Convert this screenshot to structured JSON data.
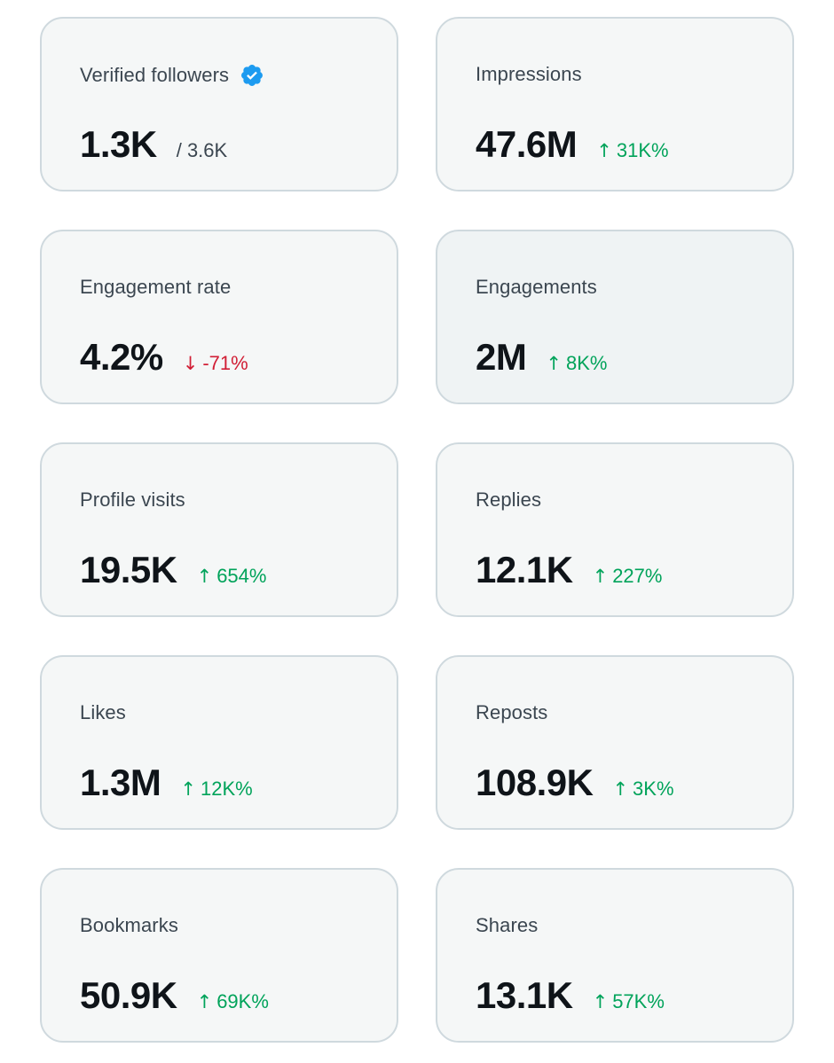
{
  "colors": {
    "card_bg": "#f5f7f7",
    "card_border": "#cfd9de",
    "value": "#0f1419",
    "label": "#3b4650",
    "up": "#00a35a",
    "down": "#d11e35",
    "verified": "#1d9bf0"
  },
  "cards": {
    "verified_followers": {
      "label": "Verified followers",
      "value": "1.3K",
      "sub": "/ 3.6K",
      "badge_icon": "verified-badge-icon"
    },
    "impressions": {
      "label": "Impressions",
      "value": "47.6M",
      "arrow": "↑",
      "delta": "31K%",
      "direction": "up"
    },
    "engagement_rate": {
      "label": "Engagement rate",
      "value": "4.2%",
      "arrow": "↓",
      "delta": "-71%",
      "direction": "down"
    },
    "engagements": {
      "label": "Engagements",
      "value": "2M",
      "arrow": "↑",
      "delta": "8K%",
      "direction": "up"
    },
    "profile_visits": {
      "label": "Profile visits",
      "value": "19.5K",
      "arrow": "↑",
      "delta": "654%",
      "direction": "up"
    },
    "replies": {
      "label": "Replies",
      "value": "12.1K",
      "arrow": "↑",
      "delta": "227%",
      "direction": "up"
    },
    "likes": {
      "label": "Likes",
      "value": "1.3M",
      "arrow": "↑",
      "delta": "12K%",
      "direction": "up"
    },
    "reposts": {
      "label": "Reposts",
      "value": "108.9K",
      "arrow": "↑",
      "delta": "3K%",
      "direction": "up"
    },
    "bookmarks": {
      "label": "Bookmarks",
      "value": "50.9K",
      "arrow": "↑",
      "delta": "69K%",
      "direction": "up"
    },
    "shares": {
      "label": "Shares",
      "value": "13.1K",
      "arrow": "↑",
      "delta": "57K%",
      "direction": "up"
    }
  }
}
